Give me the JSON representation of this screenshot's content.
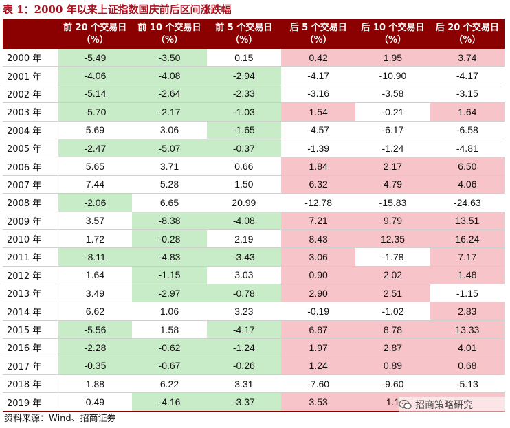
{
  "title": "表 1：2000 年以来上证指数国庆前后区间涨跌幅",
  "source": "资料来源：Wind、招商证券",
  "watermark": "招商策略研究",
  "colors": {
    "header_bg": "#8b0000",
    "title": "#a8121f",
    "positive_bg": "#f7c5c9",
    "negative_bg": "#c8ebc8"
  },
  "table": {
    "columns": [
      "前 20 个交易日（%）",
      "前 10 个交易日（%）",
      "前 5 个交易日（%）",
      "后 5 个交易日（%）",
      "后 10 个交易日（%）",
      "后 20 个交易日（%）"
    ],
    "rows": [
      {
        "year": "2000 年",
        "values": [
          "-5.49",
          "-3.50",
          "0.15",
          "0.42",
          "1.95",
          "3.74"
        ]
      },
      {
        "year": "2001 年",
        "values": [
          "-4.06",
          "-4.08",
          "-2.94",
          "-4.17",
          "-10.90",
          "-4.17"
        ]
      },
      {
        "year": "2002 年",
        "values": [
          "-5.14",
          "-2.64",
          "-2.33",
          "-3.16",
          "-3.58",
          "-3.15"
        ]
      },
      {
        "year": "2003 年",
        "values": [
          "-5.70",
          "-2.17",
          "-1.03",
          "1.54",
          "-0.21",
          "1.64"
        ]
      },
      {
        "year": "2004 年",
        "values": [
          "5.69",
          "3.06",
          "-1.65",
          "-4.57",
          "-6.17",
          "-6.58"
        ]
      },
      {
        "year": "2005 年",
        "values": [
          "-2.47",
          "-5.07",
          "-0.37",
          "-1.39",
          "-1.24",
          "-4.81"
        ]
      },
      {
        "year": "2006 年",
        "values": [
          "5.65",
          "3.71",
          "0.66",
          "1.84",
          "2.17",
          "6.50"
        ]
      },
      {
        "year": "2007 年",
        "values": [
          "7.44",
          "5.28",
          "1.50",
          "6.32",
          "4.79",
          "4.06"
        ]
      },
      {
        "year": "2008 年",
        "values": [
          "-2.06",
          "6.65",
          "20.99",
          "-12.78",
          "-15.83",
          "-24.63"
        ]
      },
      {
        "year": "2009 年",
        "values": [
          "3.57",
          "-8.38",
          "-4.08",
          "7.21",
          "9.79",
          "13.51"
        ]
      },
      {
        "year": "2010 年",
        "values": [
          "1.72",
          "-0.28",
          "2.19",
          "8.43",
          "12.35",
          "16.24"
        ]
      },
      {
        "year": "2011 年",
        "values": [
          "-8.11",
          "-4.83",
          "-3.43",
          "3.06",
          "-1.78",
          "7.17"
        ]
      },
      {
        "year": "2012 年",
        "values": [
          "1.64",
          "-1.15",
          "3.03",
          "0.90",
          "2.02",
          "1.48"
        ]
      },
      {
        "year": "2013 年",
        "values": [
          "3.49",
          "-2.97",
          "-0.78",
          "2.90",
          "2.51",
          "-1.15"
        ]
      },
      {
        "year": "2014 年",
        "values": [
          "6.62",
          "1.06",
          "3.23",
          "-0.19",
          "-1.02",
          "2.83"
        ]
      },
      {
        "year": "2015 年",
        "values": [
          "-5.56",
          "1.58",
          "-4.17",
          "6.87",
          "8.78",
          "13.33"
        ]
      },
      {
        "year": "2016 年",
        "values": [
          "-2.28",
          "-0.62",
          "-1.24",
          "1.97",
          "2.87",
          "4.01"
        ]
      },
      {
        "year": "2017 年",
        "values": [
          "-0.35",
          "-0.67",
          "-0.26",
          "1.24",
          "0.89",
          "0.68"
        ]
      },
      {
        "year": "2018 年",
        "values": [
          "1.88",
          "6.22",
          "3.31",
          "-7.60",
          "-9.60",
          "-5.13"
        ]
      },
      {
        "year": "2019 年",
        "values": [
          "0.49",
          "-4.16",
          "-3.37",
          "3.53",
          "1.1",
          ""
        ]
      }
    ]
  }
}
